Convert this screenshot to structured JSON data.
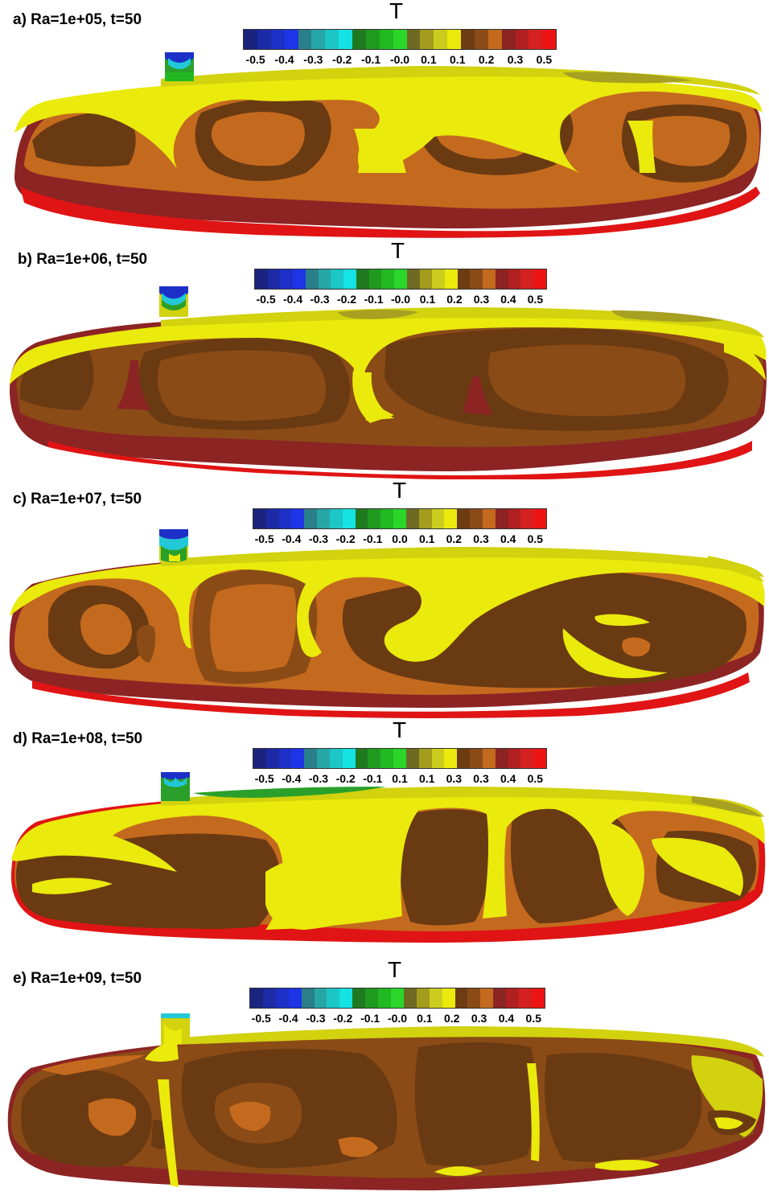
{
  "colorbar": {
    "label": "T",
    "colors": [
      "#1a237e",
      "#1c2aa6",
      "#1c30c8",
      "#1d35e6",
      "#2a7f8a",
      "#27a6a6",
      "#1cc6c6",
      "#15e2e2",
      "#1f7a1f",
      "#1f9a1f",
      "#22b822",
      "#2ad62a",
      "#6e6a24",
      "#a49c1c",
      "#cccc1e",
      "#eaea0c",
      "#6e3c12",
      "#8a4b16",
      "#c46a1e",
      "#8c2424",
      "#b02020",
      "#d42020",
      "#ec1414"
    ],
    "palette": {
      "yellow": "#eaea0c",
      "pale_yellow": "#d2d20e",
      "olive": "#a8a020",
      "dark_brown": "#6a3a12",
      "brown": "#8a4b16",
      "orange_brown": "#c46a1e",
      "maroon": "#8c2424",
      "red": "#e01414",
      "blue": "#1a237e",
      "cyan": "#22c8d8",
      "green": "#2aa02a"
    }
  },
  "panels": [
    {
      "title": "a) Ra=1e+05, t=50",
      "ticks": [
        "-0.5",
        "-0.4",
        "-0.3",
        "-0.2",
        "-0.1",
        "-0.0",
        "0.1",
        "0.1",
        "0.2",
        "0.3",
        "0.5"
      ]
    },
    {
      "title": "b) Ra=1e+06, t=50",
      "ticks": [
        "-0.5",
        "-0.4",
        "-0.3",
        "-0.2",
        "-0.1",
        "-0.0",
        "0.1",
        "0.2",
        "0.3",
        "0.4",
        "0.5"
      ]
    },
    {
      "title": "c) Ra=1e+07, t=50",
      "ticks": [
        "-0.5",
        "-0.4",
        "-0.3",
        "-0.2",
        "-0.1",
        "0.0",
        "0.1",
        "0.2",
        "0.3",
        "0.4",
        "0.5"
      ]
    },
    {
      "title": "d) Ra=1e+08, t=50",
      "ticks": [
        "-0.5",
        "-0.4",
        "-0.3",
        "-0.2",
        "-0.1",
        "0.1",
        "0.1",
        "0.3",
        "0.3",
        "0.4",
        "0.5"
      ]
    },
    {
      "title": "e) Ra=1e+09, t=50",
      "ticks": [
        "-0.5",
        "-0.4",
        "-0.3",
        "-0.2",
        "-0.1",
        "-0.0",
        "0.1",
        "0.2",
        "0.3",
        "0.4",
        "0.5"
      ]
    }
  ]
}
